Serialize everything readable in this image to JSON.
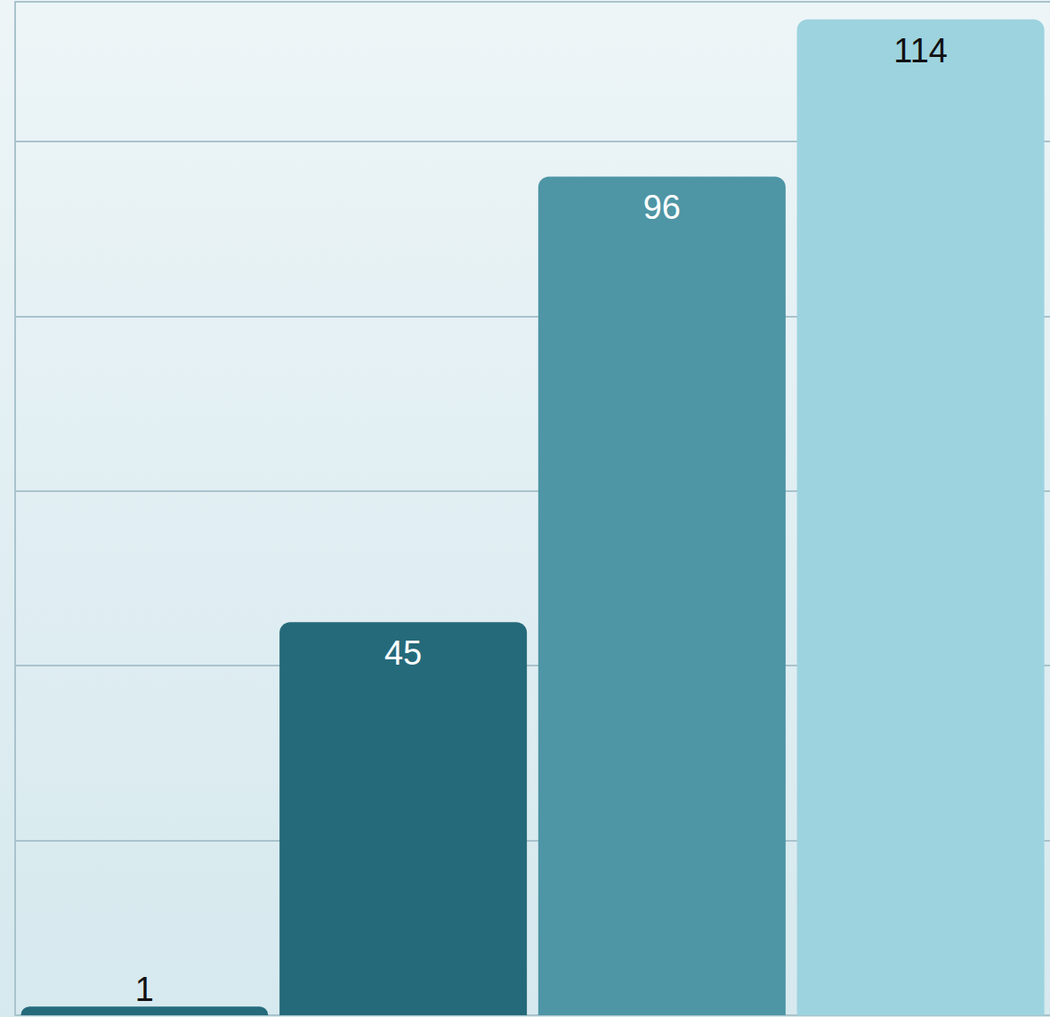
{
  "chart_data": {
    "type": "bar",
    "categories": [
      null,
      null,
      null,
      null
    ],
    "values": [
      1,
      45,
      96,
      114
    ],
    "colors": [
      "#256b7b",
      "#256a7a",
      "#4e95a5",
      "#9dd3df"
    ],
    "ylim": [
      0,
      116
    ],
    "yticks": [
      0,
      20,
      40,
      60,
      80,
      100
    ],
    "grid": true,
    "data_labels": true,
    "tick_labels": false
  }
}
